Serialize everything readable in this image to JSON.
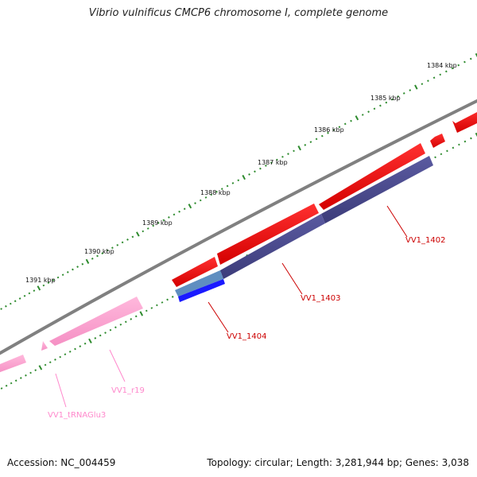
{
  "title": "Vibrio vulnificus CMCP6 chromosome I, complete genome",
  "kbp_labels": [
    "1384 kbp",
    "1385 kbp",
    "1386 kbp",
    "1387 kbp",
    "1388 kbp",
    "1389 kbp",
    "1390 kbp",
    "1391 kbp"
  ],
  "features": [
    {
      "name": "VV1_1402",
      "type": "CDS",
      "strand": "reverse"
    },
    {
      "name": "VV1_1403",
      "type": "CDS",
      "strand": "reverse"
    },
    {
      "name": "VV1_1404",
      "type": "CDS",
      "strand": "reverse"
    },
    {
      "name": "VV1_r19",
      "type": "rRNA",
      "strand": "reverse"
    },
    {
      "name": "VV1_tRNAGlu3",
      "type": "tRNA",
      "strand": "reverse"
    }
  ],
  "colors": {
    "backbone": "#808080",
    "cds": "#ff0000",
    "gene_track": "#4a4a8c",
    "gene_track_light": "#5f8ec0",
    "gene_track_dark": "#1a1aff",
    "rna": "#ff99cc",
    "tick": "#2e8b2e",
    "cds_label": "#cc0000",
    "rna_label": "#ff88cc"
  },
  "footer": {
    "accession": "Accession: NC_004459",
    "stats": "Topology: circular; Length: 3,281,944 bp; Genes: 3,038"
  }
}
